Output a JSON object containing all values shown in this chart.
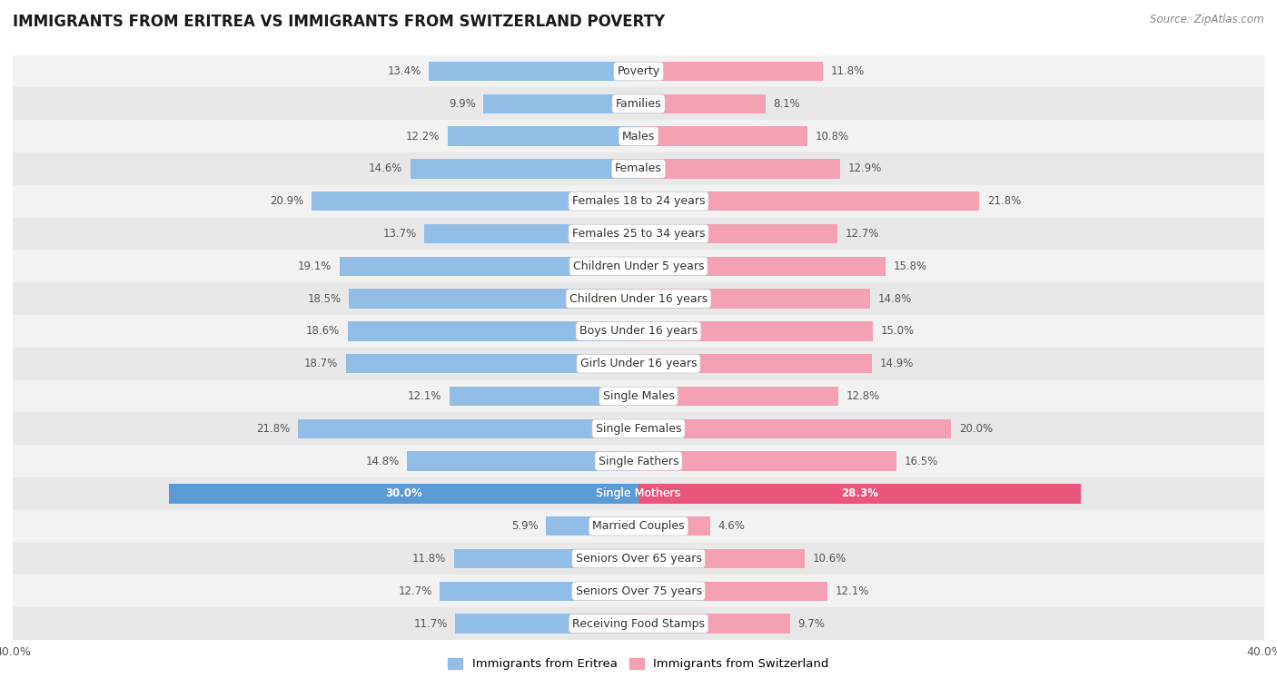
{
  "title": "IMMIGRANTS FROM ERITREA VS IMMIGRANTS FROM SWITZERLAND POVERTY",
  "source": "Source: ZipAtlas.com",
  "categories": [
    "Poverty",
    "Families",
    "Males",
    "Females",
    "Females 18 to 24 years",
    "Females 25 to 34 years",
    "Children Under 5 years",
    "Children Under 16 years",
    "Boys Under 16 years",
    "Girls Under 16 years",
    "Single Males",
    "Single Females",
    "Single Fathers",
    "Single Mothers",
    "Married Couples",
    "Seniors Over 65 years",
    "Seniors Over 75 years",
    "Receiving Food Stamps"
  ],
  "eritrea_values": [
    13.4,
    9.9,
    12.2,
    14.6,
    20.9,
    13.7,
    19.1,
    18.5,
    18.6,
    18.7,
    12.1,
    21.8,
    14.8,
    30.0,
    5.9,
    11.8,
    12.7,
    11.7
  ],
  "switzerland_values": [
    11.8,
    8.1,
    10.8,
    12.9,
    21.8,
    12.7,
    15.8,
    14.8,
    15.0,
    14.9,
    12.8,
    20.0,
    16.5,
    28.3,
    4.6,
    10.6,
    12.1,
    9.7
  ],
  "eritrea_color": "#92bde7",
  "switzerland_color": "#f4a0b5",
  "highlight_eritrea_color": "#5b9bd5",
  "highlight_switzerland_color": "#e8547a",
  "highlight_rows": [
    13
  ],
  "background_color": "#ffffff",
  "row_color_even": "#f2f2f2",
  "row_color_odd": "#e8e8e8",
  "xlim": 40.0,
  "legend_eritrea": "Immigrants from Eritrea",
  "legend_switzerland": "Immigrants from Switzerland",
  "bar_height": 0.6,
  "font_size_label": 9,
  "font_size_value": 8.5
}
